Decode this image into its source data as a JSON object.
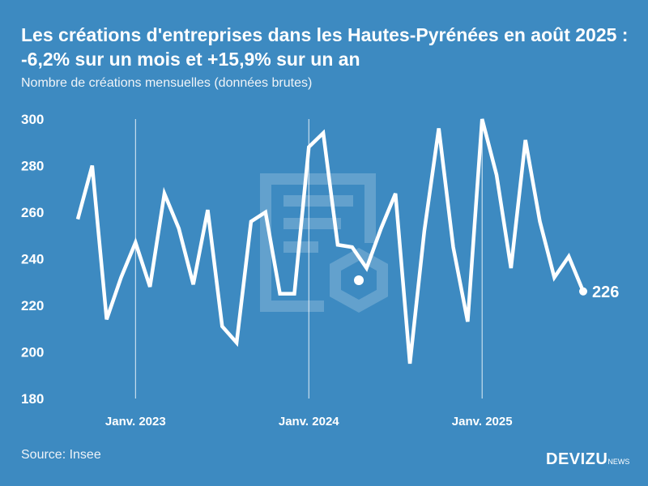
{
  "title": "Les créations d'entreprises dans les Hautes-Pyrénées en août 2025 : -6,2% sur un mois et +15,9% sur un an",
  "subtitle": "Nombre de créations mensuelles (données brutes)",
  "source": "Source: Insee",
  "logo": {
    "main": "DEVIZU",
    "suffix": "NEWS"
  },
  "colors": {
    "background": "#3d8ac1",
    "line": "#ffffff"
  },
  "chart_data": {
    "type": "line",
    "title": "Les créations d'entreprises dans les Hautes-Pyrénées en août 2025 : -6,2% sur un mois et +15,9% sur un an",
    "ylabel": "Nombre de créations mensuelles (données brutes)",
    "xlabel": "",
    "ylim": [
      180,
      300
    ],
    "yticks": [
      180,
      200,
      220,
      240,
      260,
      280,
      300
    ],
    "x_start": "2022-09",
    "x_end": "2025-08",
    "xtick_labels": [
      {
        "label": "Janv. 2023",
        "index": 4
      },
      {
        "label": "Janv. 2024",
        "index": 16
      },
      {
        "label": "Janv. 2025",
        "index": 28
      }
    ],
    "series": [
      {
        "name": "Créations d'entreprises",
        "values": [
          257,
          280,
          214,
          232,
          247,
          228,
          268,
          253,
          229,
          261,
          211,
          204,
          256,
          260,
          225,
          225,
          288,
          294,
          246,
          245,
          236,
          253,
          268,
          195,
          252,
          296,
          245,
          213,
          300,
          276,
          236,
          291,
          256,
          232,
          241,
          226
        ]
      }
    ],
    "last_label": "226"
  }
}
